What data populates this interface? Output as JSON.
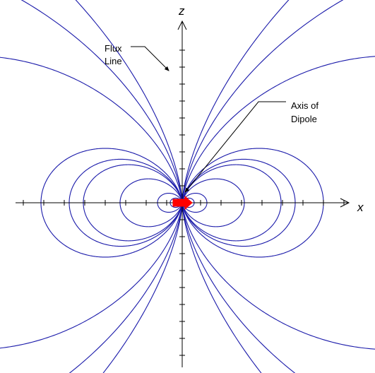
{
  "axes": {
    "x_label": "x",
    "z_label": "z"
  },
  "annotations": {
    "flux_label_line1": "Flux",
    "flux_label_line2": "Line",
    "dipole_label_line1": "Axis of",
    "dipole_label_line2": "Dipole"
  },
  "colors": {
    "flux_line": "#1a1aaa",
    "dipole": "#ff0000",
    "axis": "#000000"
  },
  "field_lines": {
    "model": "dipole r = c·sin²θ",
    "closed_loop_radii": [
      17,
      35,
      88,
      140,
      160
    ],
    "open_curve_radii": [
      200,
      540,
      950,
      1500
    ]
  }
}
